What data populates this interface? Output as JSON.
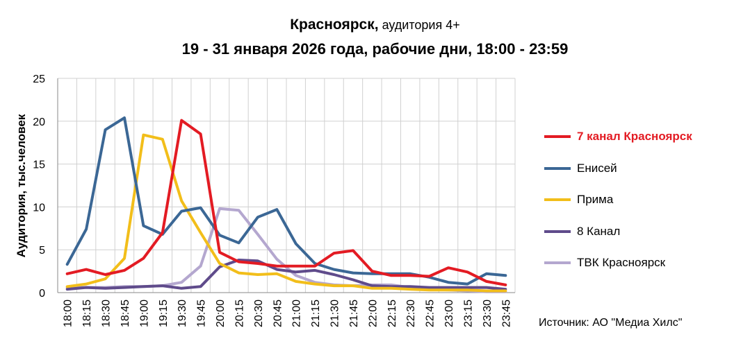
{
  "title": {
    "main": "Красноярск,",
    "audience": " аудитория 4+",
    "period": "19 - 31 января 2026 года, рабочие дни, 18:00 - 23:59"
  },
  "source": "Источник: АО \"Медиа Хилс\"",
  "chart_data": {
    "type": "line",
    "title": "Красноярск, аудитория 4+ / 19 - 31 января 2026 года, рабочие дни, 18:00 - 23:59",
    "xlabel": "",
    "ylabel": "Аудитория, тыс.человек",
    "ylim": [
      0,
      25
    ],
    "yticks": [
      0,
      5,
      10,
      15,
      20,
      25
    ],
    "grid": true,
    "legend_position": "right",
    "categories": [
      "18:00",
      "18:15",
      "18:30",
      "18:45",
      "19:00",
      "19:15",
      "19:30",
      "19:45",
      "20:00",
      "20:15",
      "20:30",
      "20:45",
      "21:00",
      "21:15",
      "21:30",
      "21:45",
      "22:00",
      "22:15",
      "22:30",
      "22:45",
      "23:00",
      "23:15",
      "23:30",
      "23:45"
    ],
    "series": [
      {
        "name": "7 канал Красноярск",
        "color": "#e31b23",
        "values": [
          2.2,
          2.7,
          2.1,
          2.6,
          4.0,
          7.0,
          20.1,
          18.5,
          4.7,
          3.6,
          3.4,
          3.1,
          3.1,
          3.1,
          4.6,
          4.9,
          2.5,
          2.0,
          2.0,
          1.9,
          2.9,
          2.4,
          1.3,
          0.9
        ]
      },
      {
        "name": "Енисей",
        "color": "#3b6795",
        "values": [
          3.3,
          7.4,
          19.0,
          20.4,
          7.8,
          6.8,
          9.5,
          9.9,
          6.7,
          5.8,
          8.8,
          9.7,
          5.7,
          3.4,
          2.7,
          2.3,
          2.2,
          2.2,
          2.2,
          1.8,
          1.2,
          1.0,
          2.2,
          2.0
        ]
      },
      {
        "name": "Прима",
        "color": "#f2be1a",
        "values": [
          0.7,
          1.0,
          1.6,
          4.0,
          18.4,
          17.9,
          10.7,
          7.0,
          3.4,
          2.3,
          2.1,
          2.2,
          1.3,
          1.0,
          0.8,
          0.8,
          0.5,
          0.5,
          0.4,
          0.3,
          0.3,
          0.3,
          0.2,
          0.2
        ]
      },
      {
        "name": "8 Канал",
        "color": "#5f4b8b",
        "values": [
          0.4,
          0.6,
          0.5,
          0.6,
          0.7,
          0.8,
          0.5,
          0.7,
          3.0,
          3.8,
          3.7,
          2.7,
          2.4,
          2.6,
          2.1,
          1.5,
          0.8,
          0.7,
          0.7,
          0.6,
          0.6,
          0.6,
          0.6,
          0.4
        ]
      },
      {
        "name": "ТВК Красноярск",
        "color": "#b4a7cf",
        "values": [
          0.6,
          0.6,
          0.6,
          0.7,
          0.7,
          0.8,
          1.2,
          3.1,
          9.8,
          9.6,
          6.8,
          3.9,
          2.0,
          1.2,
          0.9,
          0.8,
          0.9,
          0.9,
          0.6,
          0.4,
          0.3,
          0.2,
          0.1,
          0.1
        ]
      }
    ]
  }
}
